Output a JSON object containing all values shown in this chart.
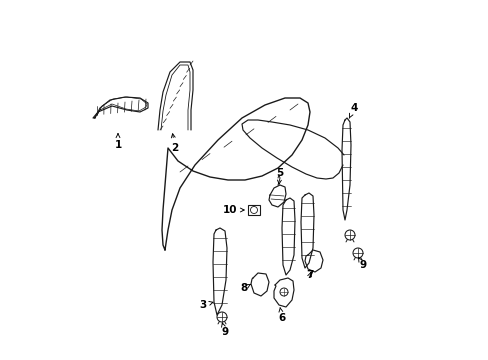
{
  "bg_color": "#ffffff",
  "line_color": "#1a1a1a",
  "label_color": "#000000",
  "figsize": [
    4.89,
    3.6
  ],
  "dpi": 100,
  "lw": 0.85
}
